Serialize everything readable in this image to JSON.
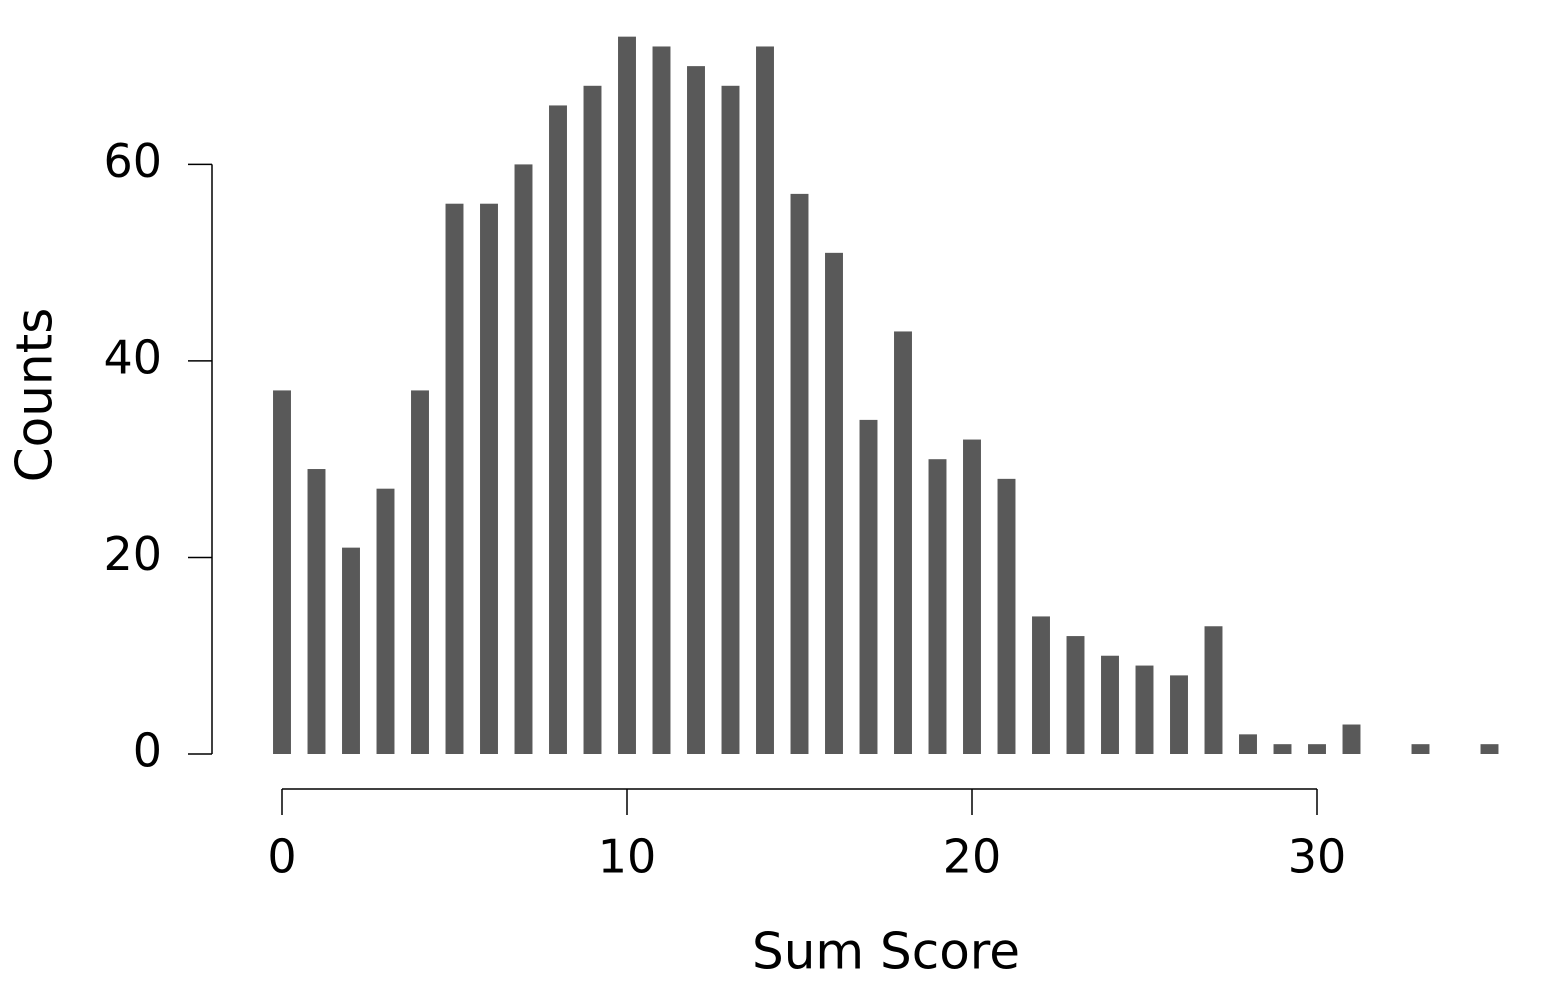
{
  "chart_data": {
    "type": "bar",
    "xlabel": "Sum Score",
    "ylabel": "Counts",
    "x": [
      0,
      1,
      2,
      3,
      4,
      5,
      6,
      7,
      8,
      9,
      10,
      11,
      12,
      13,
      14,
      15,
      16,
      17,
      18,
      19,
      20,
      21,
      22,
      23,
      24,
      25,
      26,
      27,
      28,
      29,
      30,
      31,
      32,
      33,
      34,
      35
    ],
    "values": [
      37,
      29,
      21,
      27,
      37,
      56,
      56,
      60,
      66,
      68,
      73,
      72,
      70,
      68,
      72,
      57,
      51,
      34,
      43,
      30,
      32,
      28,
      14,
      12,
      10,
      9,
      8,
      13,
      2,
      1,
      1,
      3,
      0,
      1,
      0,
      1
    ],
    "color": "#595959",
    "xlim": [
      -2,
      36
    ],
    "xticks": [
      0,
      10,
      20,
      30
    ],
    "ylim": [
      0,
      75
    ],
    "yticks": [
      0,
      20,
      40,
      60
    ],
    "grid": false
  }
}
